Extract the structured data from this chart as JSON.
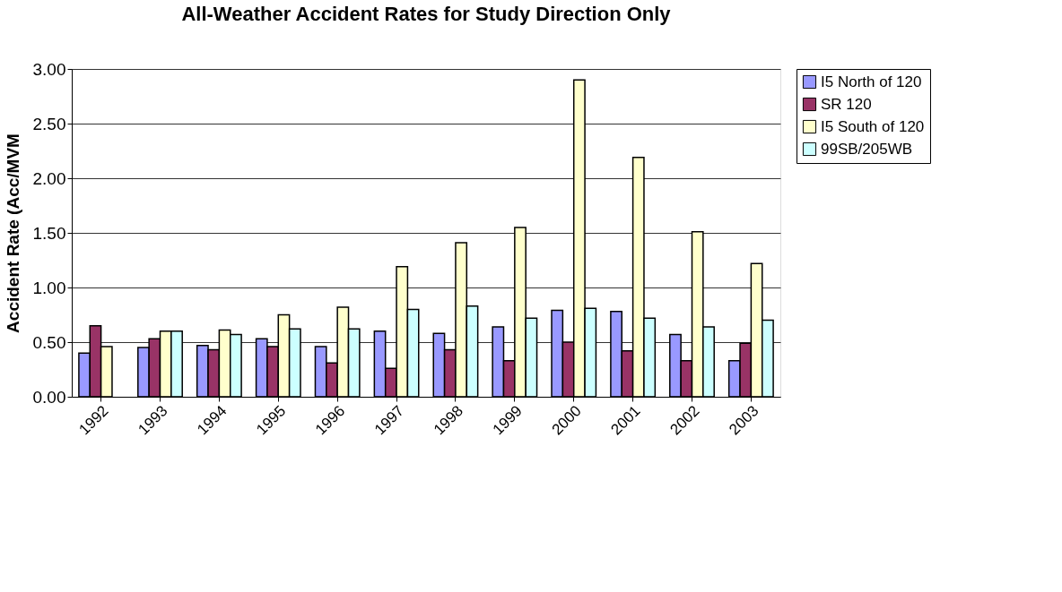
{
  "chart_data": {
    "type": "bar",
    "title": "All-Weather Accident Rates for Study Direction Only",
    "ylabel": "Accident Rate (Acc/MVM",
    "categories": [
      "1992",
      "1993",
      "1994",
      "1995",
      "1996",
      "1997",
      "1998",
      "1999",
      "2000",
      "2001",
      "2002",
      "2003"
    ],
    "series": [
      {
        "name": "I5 North of 120",
        "color": "#9999ff",
        "values": [
          0.4,
          0.45,
          0.47,
          0.53,
          0.46,
          0.6,
          0.58,
          0.64,
          0.79,
          0.78,
          0.57,
          0.33
        ]
      },
      {
        "name": "SR 120",
        "color": "#993366",
        "values": [
          0.65,
          0.53,
          0.43,
          0.46,
          0.31,
          0.26,
          0.43,
          0.33,
          0.5,
          0.42,
          0.33,
          0.49
        ]
      },
      {
        "name": "I5 South of 120",
        "color": "#ffffcc",
        "values": [
          0.46,
          0.6,
          0.61,
          0.75,
          0.82,
          1.19,
          1.41,
          1.55,
          2.9,
          2.19,
          1.51,
          1.22
        ]
      },
      {
        "name": "99SB/205WB",
        "color": "#ccffff",
        "values": [
          null,
          0.6,
          0.57,
          0.62,
          0.62,
          0.8,
          0.83,
          0.72,
          0.81,
          0.72,
          0.64,
          0.7
        ]
      }
    ],
    "ylim": [
      0,
      3
    ],
    "yticks": [
      {
        "value": 0,
        "label": "0.00"
      },
      {
        "value": 0.5,
        "label": "0.50"
      },
      {
        "value": 1,
        "label": "1.00"
      },
      {
        "value": 1.5,
        "label": "1.50"
      },
      {
        "value": 2,
        "label": "2.00"
      },
      {
        "value": 2.5,
        "label": "2.50"
      },
      {
        "value": 3,
        "label": "3.00"
      }
    ],
    "grid": "y",
    "legend": "right"
  }
}
